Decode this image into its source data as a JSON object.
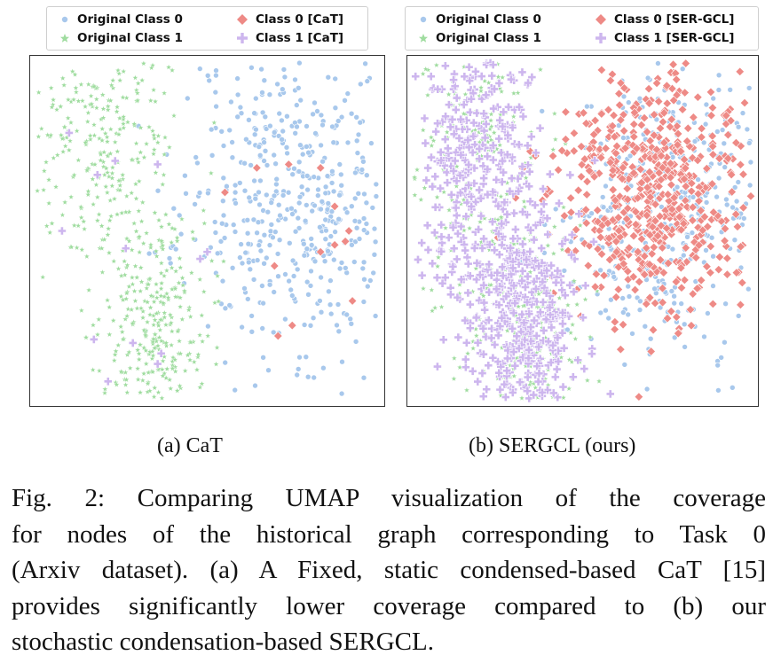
{
  "figure": {
    "caption_lines": [
      "Fig. 2: Comparing UMAP visualization of the coverage",
      "for nodes of the historical graph corresponding to Task 0",
      "(Arxiv dataset). (a) A Fixed, static condensed-based CaT [15]",
      "provides significantly lower coverage compared to (b) our",
      "stochastic condensation-based SERGCL."
    ]
  },
  "colors": {
    "original_class_0": "#a8c8ec",
    "original_class_1": "#9fdc9f",
    "condensed_class_0": "#ee8a86",
    "condensed_class_1": "#cdb6ee"
  },
  "chart_data": [
    {
      "type": "scatter",
      "subcaption": "(a) CaT",
      "axes_visible": false,
      "legend": {
        "position": "top",
        "entries": [
          {
            "label": "Original Class 0",
            "marker": "circle",
            "color_key": "original_class_0"
          },
          {
            "label": "Original Class 1",
            "marker": "star",
            "color_key": "original_class_1"
          },
          {
            "label": "Class 0 [CaT]",
            "marker": "diamond",
            "color_key": "condensed_class_0"
          },
          {
            "label": "Class 1 [CaT]",
            "marker": "plus",
            "color_key": "condensed_class_1"
          }
        ]
      },
      "series": [
        {
          "name": "Original Class 0",
          "marker": "circle",
          "color_key": "original_class_0",
          "count": 460,
          "regions": [
            {
              "cx": 0.75,
              "cy": 0.6,
              "rx": 0.35,
              "ry": 0.5
            }
          ]
        },
        {
          "name": "Original Class 1",
          "marker": "star",
          "color_key": "original_class_1",
          "count": 520,
          "regions": [
            {
              "cx": 0.2,
              "cy": 0.78,
              "rx": 0.23,
              "ry": 0.5
            },
            {
              "cx": 0.35,
              "cy": 0.2,
              "rx": 0.17,
              "ry": 0.35
            }
          ]
        },
        {
          "name": "Class 0 [CaT]",
          "marker": "diamond",
          "color_key": "condensed_class_0",
          "points": [
            [
              0.55,
              0.61
            ],
            [
              0.64,
              0.68
            ],
            [
              0.73,
              0.69
            ],
            [
              0.82,
              0.68
            ],
            [
              0.86,
              0.57
            ],
            [
              0.69,
              0.4
            ],
            [
              0.82,
              0.44
            ],
            [
              0.89,
              0.47
            ],
            [
              0.9,
              0.5
            ],
            [
              0.91,
              0.3
            ],
            [
              0.74,
              0.23
            ],
            [
              0.7,
              0.2
            ],
            [
              0.86,
              0.46
            ]
          ]
        },
        {
          "name": "Class 1 [CaT]",
          "marker": "plus",
          "color_key": "condensed_class_1",
          "points": [
            [
              0.11,
              0.78
            ],
            [
              0.19,
              0.66
            ],
            [
              0.24,
              0.7
            ],
            [
              0.36,
              0.69
            ],
            [
              0.27,
              0.45
            ],
            [
              0.09,
              0.5
            ],
            [
              0.18,
              0.19
            ],
            [
              0.29,
              0.18
            ],
            [
              0.37,
              0.15
            ],
            [
              0.36,
              0.12
            ],
            [
              0.22,
              0.07
            ],
            [
              0.5,
              0.44
            ],
            [
              0.48,
              0.42
            ]
          ]
        }
      ]
    },
    {
      "type": "scatter",
      "subcaption": "(b) SERGCL (ours)",
      "axes_visible": false,
      "legend": {
        "position": "top",
        "entries": [
          {
            "label": "Original Class 0",
            "marker": "circle",
            "color_key": "original_class_0"
          },
          {
            "label": "Original Class 1",
            "marker": "star",
            "color_key": "original_class_1"
          },
          {
            "label": "Class 0 [SER-GCL]",
            "marker": "diamond",
            "color_key": "condensed_class_0"
          },
          {
            "label": "Class 1 [SER-GCL]",
            "marker": "plus",
            "color_key": "condensed_class_1"
          }
        ]
      },
      "series": [
        {
          "name": "Original Class 0",
          "marker": "circle",
          "color_key": "original_class_0",
          "count": 420,
          "regions": [
            {
              "cx": 0.73,
              "cy": 0.57,
              "rx": 0.33,
              "ry": 0.45
            }
          ]
        },
        {
          "name": "Original Class 1",
          "marker": "star",
          "color_key": "original_class_1",
          "count": 380,
          "regions": [
            {
              "cx": 0.2,
              "cy": 0.75,
              "rx": 0.22,
              "ry": 0.52
            },
            {
              "cx": 0.34,
              "cy": 0.22,
              "rx": 0.17,
              "ry": 0.35
            }
          ]
        },
        {
          "name": "Class 0 [SER-GCL]",
          "marker": "diamond",
          "color_key": "condensed_class_0",
          "count": 560,
          "regions": [
            {
              "cx": 0.7,
              "cy": 0.6,
              "rx": 0.3,
              "ry": 0.4
            }
          ]
        },
        {
          "name": "Class 1 [SER-GCL]",
          "marker": "plus",
          "color_key": "condensed_class_1",
          "count": 650,
          "regions": [
            {
              "cx": 0.2,
              "cy": 0.72,
              "rx": 0.22,
              "ry": 0.55
            },
            {
              "cx": 0.33,
              "cy": 0.22,
              "rx": 0.17,
              "ry": 0.35
            }
          ]
        }
      ]
    }
  ]
}
